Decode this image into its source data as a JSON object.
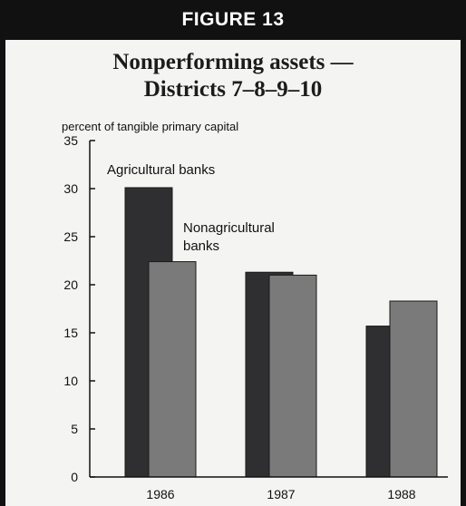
{
  "header": {
    "label": "FIGURE 13"
  },
  "title_lines": [
    "Nonperforming assets —",
    "Districts 7–8–9–10"
  ],
  "colors": {
    "agricultural": "#2f2e31",
    "nonagricultural": "#7a7a7a",
    "axis": "#111111",
    "background": "#f4f4f3"
  },
  "chart_data": {
    "type": "bar",
    "title": "Nonperforming assets — Districts 7–8–9–10",
    "ylabel": "percent of tangible primary capital",
    "xlabel": "",
    "categories": [
      "1986",
      "1987",
      "1988"
    ],
    "series": [
      {
        "name": "Agricultural banks",
        "values": [
          30.1,
          21.3,
          15.7
        ]
      },
      {
        "name": "Nonagricultural banks",
        "values": [
          22.4,
          21.0,
          18.3
        ]
      }
    ],
    "ylim": [
      0,
      35
    ],
    "yticks": [
      "0",
      "5",
      "10",
      "15",
      "20",
      "25",
      "30",
      "35"
    ],
    "legend": {
      "placement": "in-plot annotations",
      "agricultural_label": "Agricultural banks",
      "nonagricultural_label_lines": [
        "Nonagricultural",
        "banks"
      ]
    },
    "grid": false
  }
}
